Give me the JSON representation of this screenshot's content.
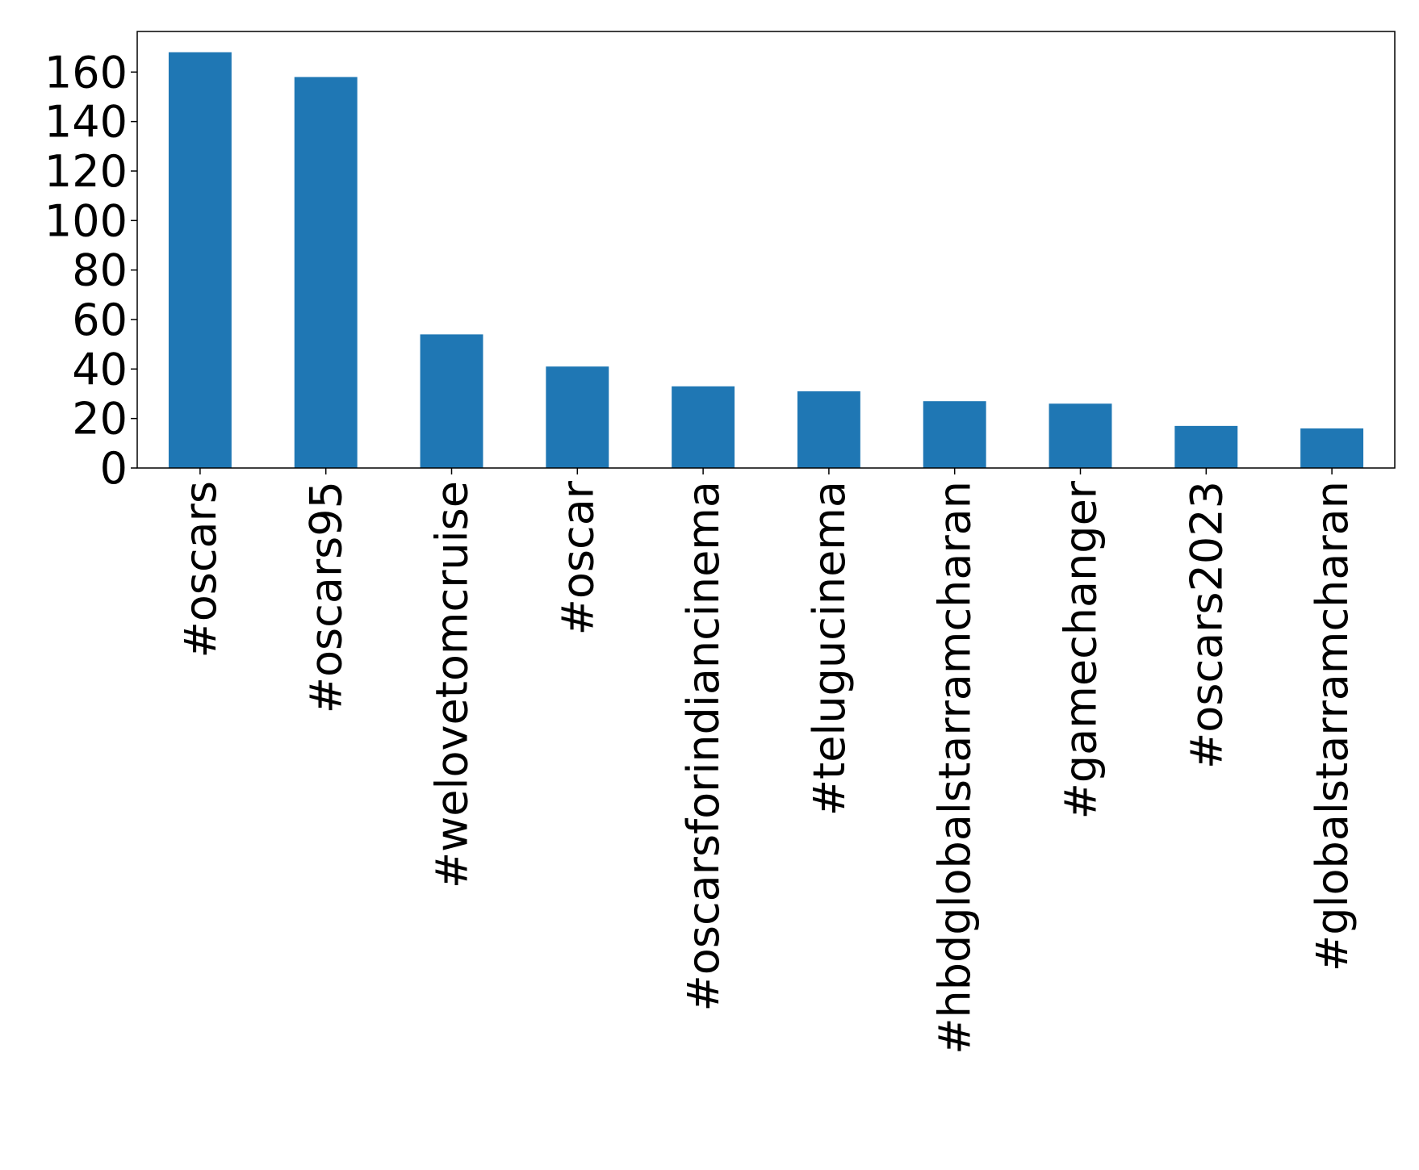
{
  "chart_data": {
    "type": "bar",
    "categories": [
      "#oscars",
      "#oscars95",
      "#welovetomcruise",
      "#oscar",
      "#oscarsforindiancinema",
      "#telugucinema",
      "#hbdglobalstarramcharan",
      "#gamechanger",
      "#oscars2023",
      "#globalstarramcharan"
    ],
    "values": [
      168,
      158,
      54,
      41,
      33,
      31,
      27,
      26,
      17,
      16
    ],
    "color": "#1f77b4",
    "ylim": [
      0,
      176.4
    ],
    "yticks": [
      0,
      20,
      40,
      60,
      80,
      100,
      120,
      140,
      160
    ],
    "grid": false
  }
}
